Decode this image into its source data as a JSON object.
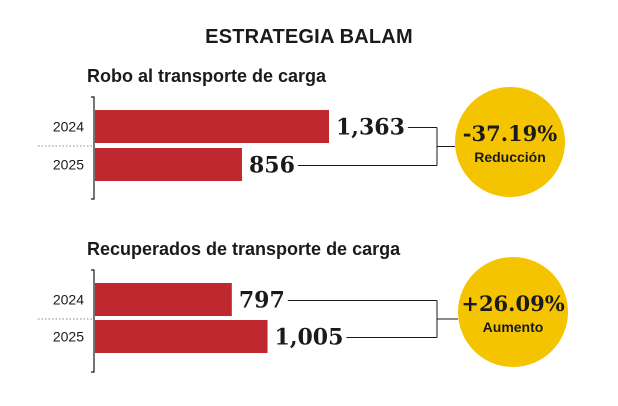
{
  "title": "ESTRATEGIA BALAM",
  "colors": {
    "bar": "#c0282f",
    "badge": "#f5c400",
    "text": "#1a1a1a",
    "dotted": "#888888"
  },
  "chart_data": [
    {
      "type": "bar",
      "orientation": "horizontal",
      "title": "Robo al transporte de carga",
      "categories": [
        "2024",
        "2025"
      ],
      "values": [
        1363,
        856
      ],
      "value_labels": [
        "1,363",
        "856"
      ],
      "change": {
        "percent": "-37.19%",
        "label": "Reducción"
      }
    },
    {
      "type": "bar",
      "orientation": "horizontal",
      "title": "Recuperados de transporte de carga",
      "categories": [
        "2024",
        "2025"
      ],
      "values": [
        797,
        1005
      ],
      "value_labels": [
        "797",
        "1,005"
      ],
      "change": {
        "percent": "+26.09%",
        "label": "Aumento"
      }
    }
  ]
}
